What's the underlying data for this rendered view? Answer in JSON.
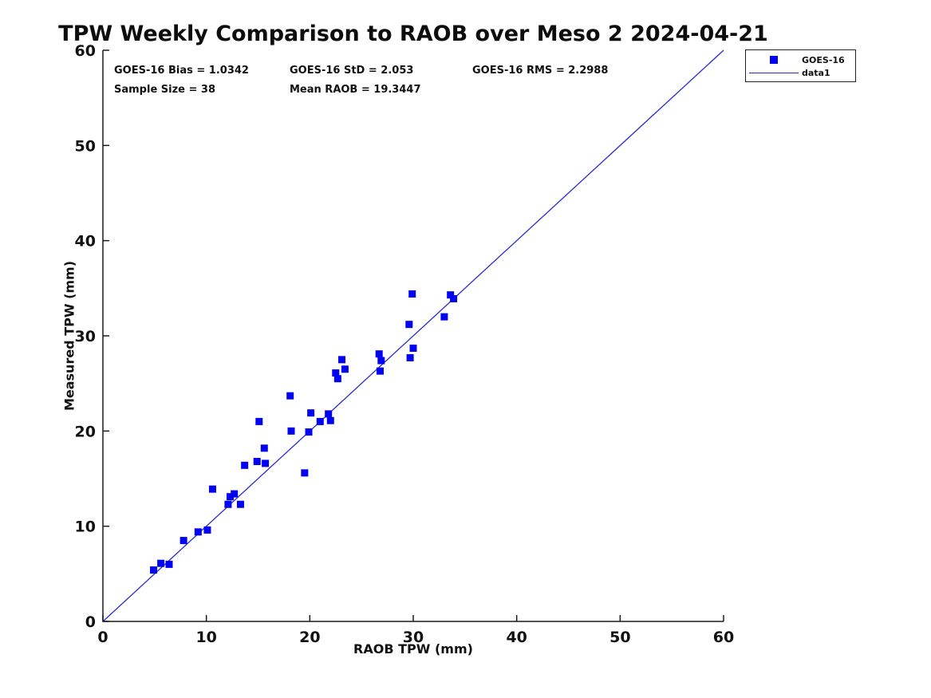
{
  "figure": {
    "title": "TPW Weekly Comparison to RAOB over Meso 2 2024-04-21",
    "stats": {
      "bias": "GOES-16 Bias = 1.0342",
      "std": "GOES-16 StD = 2.053",
      "rms": "GOES-16 RMS = 2.2988",
      "sample_size": "Sample Size = 38",
      "mean_raob": "Mean RAOB = 19.3447"
    },
    "xlabel": "RAOB TPW (mm)",
    "ylabel": "Measured TPW (mm)",
    "legend": {
      "marker_label": "GOES-16",
      "line_label": "data1"
    }
  },
  "colors": {
    "marker": "#0202f2",
    "line": "#2a2ad2",
    "axis": "#1a1a1a",
    "text": "#111111"
  },
  "chart_data": {
    "type": "scatter",
    "title": "TPW Weekly Comparison to RAOB over Meso 2 2024-04-21",
    "xlabel": "RAOB TPW (mm)",
    "ylabel": "Measured TPW (mm)",
    "xlim": [
      0,
      60
    ],
    "ylim": [
      0,
      60
    ],
    "xticks": [
      0,
      10,
      20,
      30,
      40,
      50,
      60
    ],
    "yticks": [
      0,
      10,
      20,
      30,
      40,
      50,
      60
    ],
    "grid": false,
    "legend_position": "outside-top-right",
    "annotations": [
      "GOES-16 Bias = 1.0342",
      "GOES-16 StD = 2.053",
      "GOES-16 RMS = 2.2988",
      "Sample Size = 38",
      "Mean RAOB = 19.3447"
    ],
    "series": [
      {
        "name": "GOES-16",
        "type": "scatter",
        "marker": "square",
        "color": "#0202f2",
        "points": [
          [
            4.9,
            5.4
          ],
          [
            5.6,
            6.1
          ],
          [
            6.4,
            6.0
          ],
          [
            7.8,
            8.5
          ],
          [
            9.2,
            9.4
          ],
          [
            10.1,
            9.6
          ],
          [
            10.6,
            13.9
          ],
          [
            12.1,
            12.3
          ],
          [
            12.3,
            13.1
          ],
          [
            12.7,
            13.4
          ],
          [
            13.3,
            12.3
          ],
          [
            13.7,
            16.4
          ],
          [
            14.9,
            16.8
          ],
          [
            15.1,
            21.0
          ],
          [
            15.6,
            18.2
          ],
          [
            15.7,
            16.6
          ],
          [
            18.1,
            23.7
          ],
          [
            18.2,
            20.0
          ],
          [
            19.5,
            15.6
          ],
          [
            19.9,
            19.9
          ],
          [
            20.1,
            21.9
          ],
          [
            21.0,
            21.0
          ],
          [
            21.8,
            21.8
          ],
          [
            22.0,
            21.1
          ],
          [
            22.5,
            26.1
          ],
          [
            22.7,
            25.5
          ],
          [
            23.1,
            27.5
          ],
          [
            23.4,
            26.5
          ],
          [
            26.7,
            28.1
          ],
          [
            26.8,
            26.3
          ],
          [
            26.9,
            27.4
          ],
          [
            29.6,
            31.2
          ],
          [
            29.7,
            27.7
          ],
          [
            29.9,
            34.4
          ],
          [
            30.0,
            28.7
          ],
          [
            33.0,
            32.0
          ],
          [
            33.6,
            34.3
          ],
          [
            33.9,
            33.9
          ]
        ]
      },
      {
        "name": "data1",
        "type": "line",
        "color": "#2a2ad2",
        "points": [
          [
            0,
            0
          ],
          [
            60,
            60
          ]
        ]
      }
    ]
  }
}
